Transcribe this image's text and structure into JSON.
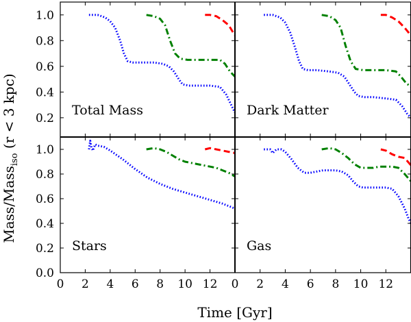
{
  "chart_data": {
    "type": "line",
    "layout": "2x2 grid, shared axes",
    "xlabel": "Time [Gyr]",
    "ylabel": "Mass/Mass",
    "ylabel_sub": "iso",
    "ylabel_suffix": " (r < 3 kpc)",
    "xlim": [
      0,
      14
    ],
    "xticks": [
      0,
      2,
      4,
      6,
      8,
      10,
      12
    ],
    "top_ylim": [
      0.05,
      1.1
    ],
    "top_yticks": [
      0.2,
      0.4,
      0.6,
      0.8,
      1.0
    ],
    "bottom_ylim": [
      0.0,
      1.1
    ],
    "bottom_yticks": [
      0.0,
      0.2,
      0.4,
      0.6,
      0.8,
      1.0
    ],
    "series_styles": [
      {
        "name": "blue-dotted",
        "color": "#0000ff",
        "dash": "1.6 2.6"
      },
      {
        "name": "green-dashdot",
        "color": "#008000",
        "dash": "9 4 2 4"
      },
      {
        "name": "red-dashed",
        "color": "#ff0000",
        "dash": "9 5"
      }
    ],
    "panels": [
      {
        "id": "total-mass",
        "title": "Total Mass",
        "position": "top-left",
        "series": [
          {
            "name": "blue-dotted",
            "x": [
              2.3,
              3.0,
              3.6,
              4.0,
              4.4,
              4.8,
              5.1,
              5.4,
              5.8,
              6.5,
              7.5,
              8.2,
              8.7,
              9.1,
              9.5,
              9.8,
              10.3,
              11.0,
              12.0,
              12.8,
              13.3,
              13.7,
              14.0
            ],
            "y": [
              1.0,
              1.0,
              0.98,
              0.95,
              0.9,
              0.8,
              0.7,
              0.64,
              0.63,
              0.63,
              0.63,
              0.62,
              0.6,
              0.56,
              0.5,
              0.46,
              0.45,
              0.45,
              0.45,
              0.44,
              0.38,
              0.3,
              0.24
            ]
          },
          {
            "name": "green-dashdot",
            "x": [
              6.9,
              7.5,
              8.0,
              8.4,
              8.8,
              9.2,
              9.6,
              10.2,
              11.0,
              12.0,
              12.8,
              13.2,
              13.6,
              14.0
            ],
            "y": [
              1.0,
              0.99,
              0.97,
              0.92,
              0.8,
              0.7,
              0.66,
              0.65,
              0.65,
              0.65,
              0.65,
              0.62,
              0.56,
              0.52
            ]
          },
          {
            "name": "red-dashed",
            "x": [
              11.6,
              12.0,
              12.5,
              13.0,
              13.5,
              14.0
            ],
            "y": [
              1.0,
              1.0,
              0.99,
              0.96,
              0.92,
              0.84
            ]
          }
        ]
      },
      {
        "id": "dark-matter",
        "title": "Dark Matter",
        "position": "top-right",
        "series": [
          {
            "name": "blue-dotted",
            "x": [
              2.3,
              3.0,
              3.6,
              4.0,
              4.4,
              4.8,
              5.1,
              5.4,
              5.8,
              6.5,
              7.5,
              8.2,
              8.7,
              9.1,
              9.5,
              9.8,
              10.3,
              11.0,
              12.0,
              12.8,
              13.3,
              13.7,
              14.0
            ],
            "y": [
              1.0,
              1.0,
              0.98,
              0.94,
              0.86,
              0.74,
              0.64,
              0.58,
              0.57,
              0.57,
              0.56,
              0.55,
              0.52,
              0.46,
              0.4,
              0.37,
              0.36,
              0.36,
              0.35,
              0.34,
              0.29,
              0.23,
              0.2
            ]
          },
          {
            "name": "green-dashdot",
            "x": [
              6.9,
              7.5,
              8.0,
              8.4,
              8.8,
              9.2,
              9.6,
              10.2,
              11.0,
              12.0,
              12.8,
              13.2,
              13.6,
              14.0
            ],
            "y": [
              1.0,
              0.99,
              0.96,
              0.9,
              0.76,
              0.64,
              0.58,
              0.57,
              0.57,
              0.57,
              0.56,
              0.52,
              0.47,
              0.44
            ]
          },
          {
            "name": "red-dashed",
            "x": [
              11.6,
              12.0,
              12.5,
              13.0,
              13.5,
              14.0
            ],
            "y": [
              1.0,
              1.0,
              0.98,
              0.95,
              0.9,
              0.84
            ]
          }
        ]
      },
      {
        "id": "stars",
        "title": "Stars",
        "position": "bottom-left",
        "series": [
          {
            "name": "blue-dotted",
            "x": [
              2.3,
              2.4,
              2.5,
              2.6,
              2.8,
              3.0,
              3.5,
              4.0,
              5.0,
              6.0,
              7.0,
              8.0,
              9.0,
              10.0,
              11.0,
              12.0,
              13.0,
              14.0
            ],
            "y": [
              1.0,
              1.07,
              1.02,
              0.99,
              1.04,
              1.03,
              1.02,
              0.99,
              0.92,
              0.84,
              0.77,
              0.72,
              0.68,
              0.65,
              0.62,
              0.59,
              0.56,
              0.52
            ]
          },
          {
            "name": "green-dashdot",
            "x": [
              6.9,
              7.5,
              8.0,
              8.5,
              9.0,
              9.5,
              10.0,
              10.5,
              11.0,
              11.5,
              12.0,
              12.5,
              13.0,
              13.5,
              14.0
            ],
            "y": [
              1.0,
              1.01,
              1.0,
              0.98,
              0.95,
              0.92,
              0.9,
              0.89,
              0.88,
              0.87,
              0.86,
              0.85,
              0.83,
              0.81,
              0.78
            ]
          },
          {
            "name": "red-dashed",
            "x": [
              11.6,
              12.0,
              12.5,
              13.0,
              13.5,
              14.0
            ],
            "y": [
              1.0,
              1.01,
              1.0,
              0.99,
              0.98,
              0.97
            ]
          }
        ]
      },
      {
        "id": "gas",
        "title": "Gas",
        "position": "bottom-right",
        "series": [
          {
            "name": "blue-dotted",
            "x": [
              2.3,
              2.8,
              3.0,
              3.3,
              3.7,
              4.0,
              4.5,
              5.0,
              5.5,
              6.0,
              6.5,
              7.0,
              7.5,
              8.0,
              8.5,
              9.0,
              9.4,
              9.8,
              10.2,
              11.0,
              12.0,
              12.5,
              13.0,
              13.5,
              13.8,
              14.0
            ],
            "y": [
              1.0,
              1.0,
              0.97,
              1.0,
              1.0,
              0.98,
              0.92,
              0.85,
              0.81,
              0.81,
              0.82,
              0.83,
              0.83,
              0.83,
              0.82,
              0.79,
              0.74,
              0.7,
              0.69,
              0.69,
              0.69,
              0.68,
              0.62,
              0.52,
              0.44,
              0.4
            ]
          },
          {
            "name": "green-dashdot",
            "x": [
              6.9,
              7.5,
              8.0,
              8.5,
              9.0,
              9.5,
              10.0,
              10.5,
              11.0,
              11.5,
              12.0,
              12.5,
              13.0,
              13.5,
              14.0
            ],
            "y": [
              1.0,
              1.01,
              1.0,
              0.97,
              0.93,
              0.88,
              0.85,
              0.85,
              0.85,
              0.86,
              0.86,
              0.86,
              0.85,
              0.8,
              0.74
            ]
          },
          {
            "name": "red-dashed",
            "x": [
              11.6,
              12.0,
              12.5,
              13.0,
              13.5,
              14.0
            ],
            "y": [
              1.0,
              0.99,
              0.96,
              0.94,
              0.93,
              0.87
            ]
          }
        ]
      }
    ]
  }
}
